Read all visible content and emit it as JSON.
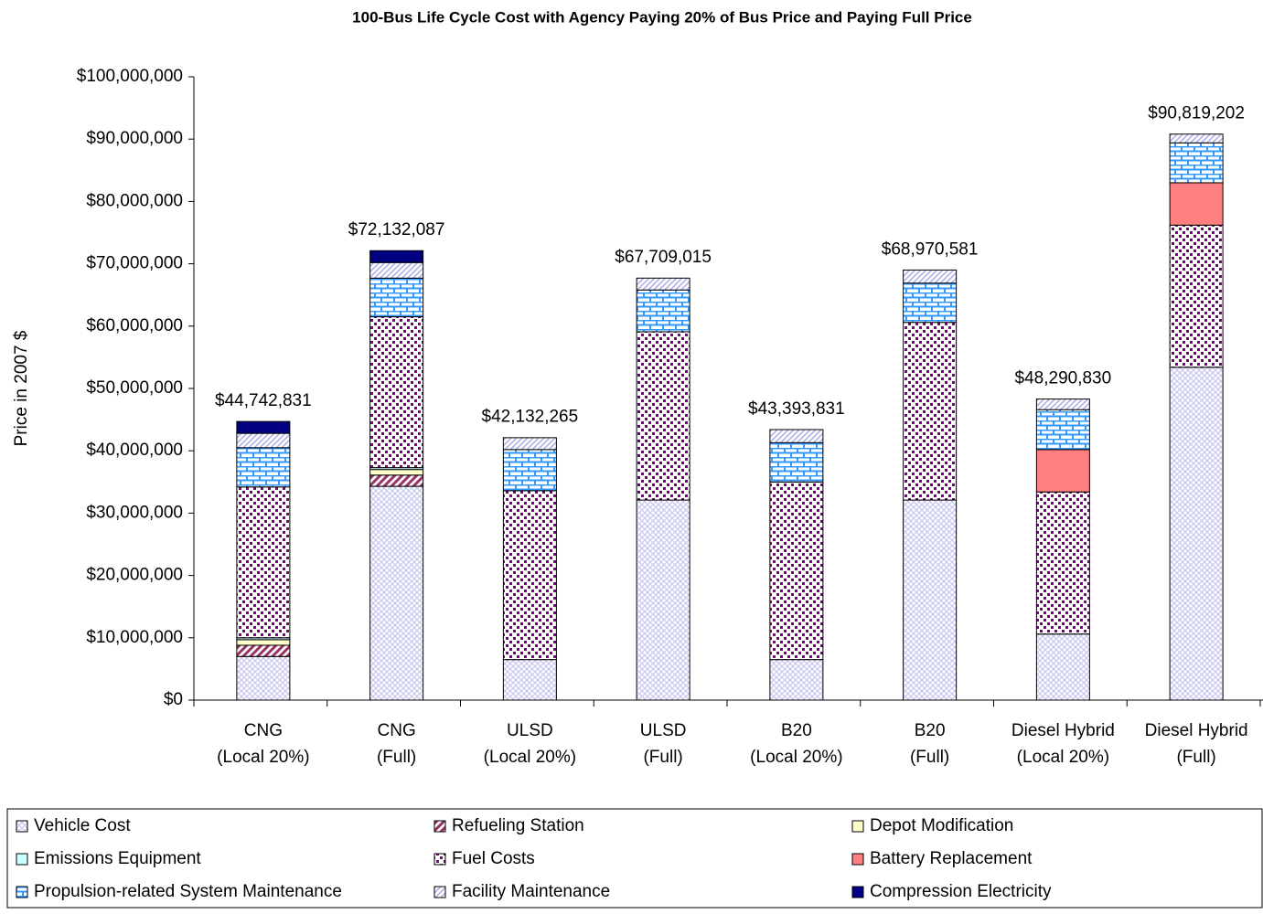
{
  "chart_data": {
    "type": "stacked_bar",
    "title": "100-Bus Life Cycle Cost with Agency Paying 20% of Bus Price and Paying Full Price",
    "y_label": "Price in 2007 $",
    "categories": [
      [
        "CNG",
        "(Local 20%)"
      ],
      [
        "CNG",
        "(Full)"
      ],
      [
        "ULSD",
        "(Local 20%)"
      ],
      [
        "ULSD",
        "(Full)"
      ],
      [
        "B20",
        "(Local 20%)"
      ],
      [
        "B20",
        "(Full)"
      ],
      [
        "Diesel Hybrid",
        "(Local 20%)"
      ],
      [
        "Diesel Hybrid",
        "(Full)"
      ]
    ],
    "series": [
      {
        "name": "Vehicle Cost",
        "color": "#c8c8f0",
        "values": [
          7000000,
          34300000,
          6500000,
          32100000,
          6500000,
          32100000,
          10600000,
          53400000
        ]
      },
      {
        "name": "Refueling Station",
        "color": "#993366",
        "values": [
          1800000,
          1800000,
          0,
          0,
          0,
          0,
          0,
          0
        ]
      },
      {
        "name": "Depot Modification",
        "color": "#ffffcc",
        "values": [
          900000,
          900000,
          0,
          0,
          0,
          0,
          0,
          0
        ]
      },
      {
        "name": "Emissions Equipment",
        "color": "#ccffff",
        "values": [
          300000,
          300000,
          0,
          0,
          0,
          0,
          0,
          0
        ]
      },
      {
        "name": "Fuel Costs",
        "color": "#800080",
        "values": [
          24200000,
          24200000,
          27100000,
          27000000,
          28500000,
          28500000,
          22800000,
          22800000
        ]
      },
      {
        "name": "Battery Replacement",
        "color": "#ff8080",
        "values": [
          0,
          0,
          0,
          0,
          0,
          0,
          6800000,
          6800000
        ]
      },
      {
        "name": "Propulsion-related System Maintenance",
        "color": "#3399ff",
        "values": [
          6300000,
          6200000,
          6600000,
          6700000,
          6300000,
          6300000,
          6400000,
          6400000
        ]
      },
      {
        "name": "Facility Maintenance",
        "color": "#b0b0e8",
        "values": [
          2300000,
          2500000,
          1900000,
          1900000,
          2100000,
          2100000,
          1700000,
          1400000
        ]
      },
      {
        "name": "Compression Electricity",
        "color": "#000080",
        "values": [
          1900000,
          1900000,
          0,
          0,
          0,
          0,
          0,
          0
        ]
      }
    ],
    "totals": [
      44742831,
      72132087,
      42132265,
      67709015,
      43393831,
      68970581,
      48290830,
      90819202
    ],
    "total_labels": [
      "$44,742,831",
      "$72,132,087",
      "$42,132,265",
      "$67,709,015",
      "$43,393,831",
      "$68,970,581",
      "$48,290,830",
      "$90,819,202"
    ],
    "ylim": [
      0,
      100000000
    ],
    "yticks": [
      {
        "value": 0,
        "label": "$0"
      },
      {
        "value": 10000000,
        "label": "$10,000,000"
      },
      {
        "value": 20000000,
        "label": "$20,000,000"
      },
      {
        "value": 30000000,
        "label": "$30,000,000"
      },
      {
        "value": 40000000,
        "label": "$40,000,000"
      },
      {
        "value": 50000000,
        "label": "$50,000,000"
      },
      {
        "value": 60000000,
        "label": "$60,000,000"
      },
      {
        "value": 70000000,
        "label": "$70,000,000"
      },
      {
        "value": 80000000,
        "label": "$80,000,000"
      },
      {
        "value": 90000000,
        "label": "$90,000,000"
      },
      {
        "value": 100000000,
        "label": "$100,000,000"
      }
    ],
    "grid": false,
    "legend": "bottom"
  }
}
